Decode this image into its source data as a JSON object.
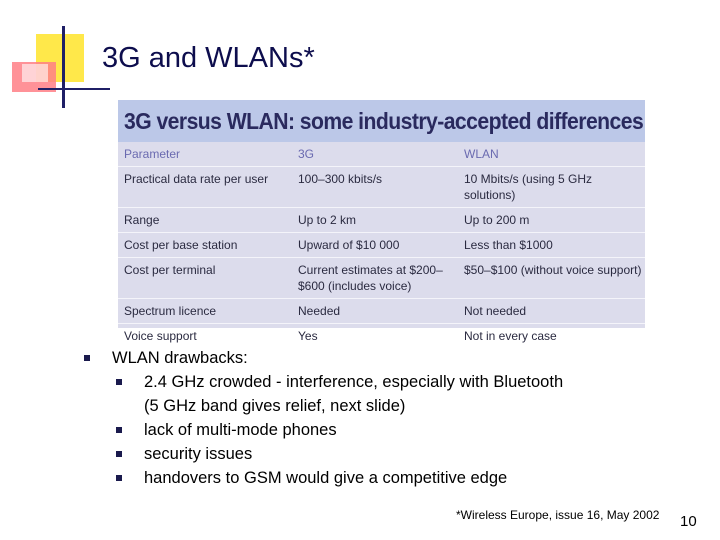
{
  "slide": {
    "title": "3G and WLANs*",
    "footnote": "*Wireless Europe, issue 16, May 2002",
    "page_number": "10"
  },
  "table": {
    "heading": "3G versus WLAN: some industry-accepted differences",
    "columns": [
      "Parameter",
      "3G",
      "WLAN"
    ],
    "rows": [
      [
        "Practical data rate per user",
        "100–300 kbits/s",
        "10 Mbits/s (using 5 GHz solutions)"
      ],
      [
        "Range",
        "Up to 2 km",
        "Up to 200 m"
      ],
      [
        "Cost per base station",
        "Upward of $10 000",
        "Less than $1000"
      ],
      [
        "Cost per terminal",
        "Current estimates at $200–\n$600 (includes voice)",
        "$50–$100 (without voice support)"
      ],
      [
        "Spectrum licence",
        "Needed",
        "Not needed"
      ],
      [
        "Voice support",
        "Yes",
        "Not in every case"
      ]
    ]
  },
  "bullets": {
    "main": "WLAN drawbacks:",
    "items": [
      {
        "line1": "2.4 GHz crowded - interference, especially with Bluetooth",
        "line2": "(5 GHz band gives relief, next slide)"
      },
      {
        "line1": "lack of multi-mode phones"
      },
      {
        "line1": "security issues"
      },
      {
        "line1": "handovers to GSM would give a competitive edge"
      }
    ]
  }
}
